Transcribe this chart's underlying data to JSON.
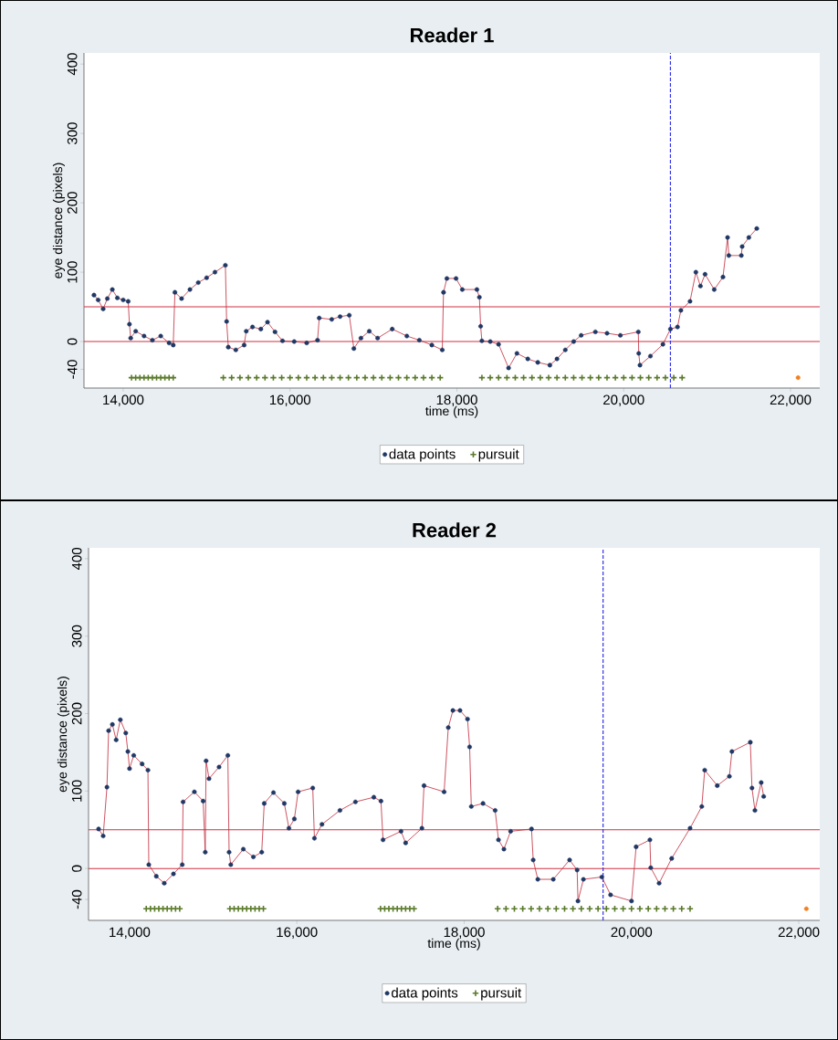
{
  "chart_data": [
    {
      "type": "scatter",
      "title": "Reader 1",
      "xlabel": "time (ms)",
      "ylabel": "eye distance (pixels)",
      "xlim": [
        13530,
        22350
      ],
      "ylim": [
        -67,
        416
      ],
      "xticks": [
        {
          "value": 14000,
          "label": "14,000"
        },
        {
          "value": 16000,
          "label": "16,000"
        },
        {
          "value": 18000,
          "label": "18,000"
        },
        {
          "value": 20000,
          "label": "20,000"
        },
        {
          "value": 22000,
          "label": "22,000"
        }
      ],
      "yticks": [
        -40,
        0,
        100,
        200,
        300,
        400
      ],
      "legend": "bottom",
      "grid": false,
      "ref_lines": [
        {
          "axis": "y",
          "value": 0,
          "color": "#d03040"
        },
        {
          "axis": "y",
          "value": 50,
          "color": "#d03040"
        },
        {
          "axis": "x",
          "value": 20560,
          "color": "#3333ee",
          "line_style": "dashed"
        }
      ],
      "series": [
        {
          "type": "line",
          "color": "#c0283a",
          "x": [
            13650,
            13700,
            13760,
            13810,
            13870,
            13930,
            14000,
            14060,
            14075,
            14090,
            14150,
            14250,
            14350,
            14450,
            14550,
            14600,
            14620,
            14700,
            14800,
            14900,
            15000,
            15100,
            15225,
            15240,
            15260,
            15350,
            15450,
            15475,
            15550,
            15650,
            15730,
            15820,
            15910,
            16050,
            16200,
            16330,
            16350,
            16500,
            16600,
            16710,
            16765,
            16850,
            16950,
            17050,
            17225,
            17400,
            17550,
            17700,
            17825,
            17840,
            17880,
            17990,
            18065,
            18240,
            18270,
            18285,
            18300,
            18400,
            18500,
            18620,
            18720,
            18850,
            18970,
            19115,
            19200,
            19300,
            19400,
            19490,
            19660,
            19800,
            19960,
            20175,
            20180,
            20195,
            20320,
            20470,
            20560,
            20645,
            20685,
            20795,
            20865,
            20920,
            20975,
            21085,
            21190,
            21245,
            21260,
            21410,
            21420,
            21500,
            21595
          ],
          "values": [
            67,
            60,
            47,
            62,
            75,
            63,
            60,
            58,
            25,
            5,
            15,
            8,
            2,
            8,
            -2,
            -5,
            71,
            62,
            75,
            85,
            92,
            100,
            110,
            29,
            -8,
            -12,
            -5,
            15,
            21,
            18,
            28,
            14,
            1,
            0,
            -2,
            2,
            34,
            32,
            36,
            38,
            -10,
            5,
            15,
            5,
            18,
            8,
            2,
            -5,
            -12,
            71,
            91,
            91,
            75,
            75,
            64,
            22,
            1,
            0,
            -4,
            -38,
            -17,
            -25,
            -30,
            -34,
            -25,
            -12,
            0,
            9,
            14,
            12,
            9,
            14,
            -17,
            -34,
            -21,
            -4,
            18,
            21,
            45,
            58,
            100,
            80,
            97,
            75,
            93,
            150,
            124,
            124,
            137,
            150,
            163
          ]
        },
        {
          "name": "data points",
          "marker": "circle",
          "color": "#1f3864",
          "x": [
            13650,
            13700,
            13760,
            13810,
            13870,
            13930,
            14000,
            14060,
            14075,
            14090,
            14150,
            14250,
            14350,
            14450,
            14550,
            14600,
            14620,
            14700,
            14800,
            14900,
            15000,
            15100,
            15225,
            15240,
            15260,
            15350,
            15450,
            15475,
            15550,
            15650,
            15730,
            15820,
            15910,
            16050,
            16200,
            16330,
            16350,
            16500,
            16600,
            16710,
            16765,
            16850,
            16950,
            17050,
            17225,
            17400,
            17550,
            17700,
            17825,
            17840,
            17880,
            17990,
            18065,
            18240,
            18270,
            18285,
            18300,
            18400,
            18500,
            18620,
            18720,
            18850,
            18970,
            19115,
            19200,
            19300,
            19400,
            19490,
            19660,
            19800,
            19960,
            20175,
            20180,
            20195,
            20320,
            20470,
            20560,
            20645,
            20685,
            20795,
            20865,
            20920,
            20975,
            21085,
            21190,
            21245,
            21260,
            21410,
            21420,
            21500,
            21595
          ],
          "values": [
            67,
            60,
            47,
            62,
            75,
            63,
            60,
            58,
            25,
            5,
            15,
            8,
            2,
            8,
            -2,
            -5,
            71,
            62,
            75,
            85,
            92,
            100,
            110,
            29,
            -8,
            -12,
            -5,
            15,
            21,
            18,
            28,
            14,
            1,
            0,
            -2,
            2,
            34,
            32,
            36,
            38,
            -10,
            5,
            15,
            5,
            18,
            8,
            2,
            -5,
            -12,
            71,
            91,
            91,
            75,
            75,
            64,
            22,
            1,
            0,
            -4,
            -38,
            -17,
            -25,
            -30,
            -34,
            -25,
            -12,
            0,
            9,
            14,
            12,
            9,
            14,
            -17,
            -34,
            -21,
            -4,
            18,
            21,
            45,
            58,
            100,
            80,
            97,
            75,
            93,
            150,
            124,
            124,
            137,
            150,
            163
          ]
        },
        {
          "name": "pursuit",
          "marker": "cross",
          "color": "#5a7a2a",
          "x": [
            14100,
            14150,
            14200,
            14250,
            14300,
            14350,
            14400,
            14450,
            14500,
            14550,
            14600,
            15200,
            15300,
            15400,
            15500,
            15600,
            15700,
            15800,
            15900,
            16000,
            16100,
            16200,
            16300,
            16400,
            16500,
            16600,
            16700,
            16800,
            16900,
            17000,
            17100,
            17200,
            17300,
            17400,
            17500,
            17600,
            17700,
            17800,
            18300,
            18400,
            18500,
            18600,
            18700,
            18800,
            18900,
            19000,
            19100,
            19200,
            19300,
            19400,
            19500,
            19600,
            19700,
            19800,
            19900,
            20000,
            20100,
            20200,
            20300,
            20400,
            20500,
            20600,
            20700
          ],
          "values": [
            -52,
            -52,
            -52,
            -52,
            -52,
            -52,
            -52,
            -52,
            -52,
            -52,
            -52,
            -52,
            -52,
            -52,
            -52,
            -52,
            -52,
            -52,
            -52,
            -52,
            -52,
            -52,
            -52,
            -52,
            -52,
            -52,
            -52,
            -52,
            -52,
            -52,
            -52,
            -52,
            -52,
            -52,
            -52,
            -52,
            -52,
            -52,
            -52,
            -52,
            -52,
            -52,
            -52,
            -52,
            -52,
            -52,
            -52,
            -52,
            -52,
            -52,
            -52,
            -52,
            -52,
            -52,
            -52,
            -52,
            -52,
            -52,
            -52,
            -52,
            -52,
            -52,
            -52
          ]
        },
        {
          "marker": "circle",
          "color": "#f08020",
          "x": [
            22090
          ],
          "values": [
            -52
          ]
        }
      ]
    },
    {
      "type": "scatter",
      "title": "Reader 2",
      "xlabel": "time (ms)",
      "ylabel": "eye distance (pixels)",
      "xlim": [
        13510,
        22250
      ],
      "ylim": [
        -67,
        414
      ],
      "xticks": [
        {
          "value": 14000,
          "label": "14,000"
        },
        {
          "value": 16000,
          "label": "16,000"
        },
        {
          "value": 18000,
          "label": "18,000"
        },
        {
          "value": 20000,
          "label": "20,000"
        },
        {
          "value": 22000,
          "label": "22,000"
        }
      ],
      "yticks": [
        -40,
        0,
        100,
        200,
        300,
        400
      ],
      "legend": "bottom",
      "grid": false,
      "ref_lines": [
        {
          "axis": "y",
          "value": 0,
          "color": "#d03040"
        },
        {
          "axis": "y",
          "value": 50,
          "color": "#d03040"
        },
        {
          "axis": "x",
          "value": 19660,
          "color": "#3333ee",
          "line_style": "dashed"
        }
      ],
      "series": [
        {
          "type": "line",
          "color": "#c0283a",
          "x": [
            13630,
            13685,
            13730,
            13750,
            13795,
            13840,
            13890,
            13955,
            13980,
            14000,
            14050,
            14150,
            14220,
            14230,
            14320,
            14415,
            14525,
            14630,
            14640,
            14775,
            14880,
            14905,
            14915,
            14950,
            15070,
            15175,
            15190,
            15210,
            15360,
            15480,
            15580,
            15610,
            15720,
            15850,
            15905,
            15970,
            16015,
            16190,
            16210,
            16300,
            16515,
            16700,
            16920,
            17005,
            17030,
            17245,
            17300,
            17495,
            17520,
            17760,
            17810,
            17865,
            17950,
            18040,
            18065,
            18085,
            18225,
            18370,
            18410,
            18475,
            18555,
            18805,
            18825,
            18880,
            19065,
            19260,
            19350,
            19360,
            19425,
            19645,
            19750,
            20000,
            20055,
            20220,
            20230,
            20330,
            20480,
            20700,
            20840,
            20875,
            21025,
            21170,
            21200,
            21420,
            21440,
            21475,
            21550,
            21580
          ],
          "values": [
            51,
            42,
            105,
            178,
            186,
            166,
            192,
            175,
            151,
            129,
            146,
            135,
            127,
            5,
            -10,
            -19,
            -7,
            5,
            86,
            99,
            87,
            21,
            139,
            116,
            131,
            146,
            21,
            5,
            25,
            15,
            21,
            84,
            98,
            84,
            52,
            64,
            99,
            104,
            39,
            57,
            75,
            86,
            92,
            87,
            37,
            48,
            33,
            52,
            107,
            99,
            182,
            204,
            204,
            193,
            157,
            80,
            84,
            75,
            37,
            25,
            48,
            51,
            11,
            -14,
            -14,
            11,
            -2,
            -42,
            -14,
            -11,
            -34,
            -42,
            28,
            37,
            1,
            -19,
            13,
            52,
            80,
            127,
            107,
            119,
            151,
            163,
            104,
            75,
            111,
            93
          ]
        },
        {
          "name": "data points",
          "marker": "circle",
          "color": "#1f3864",
          "x": [
            13630,
            13685,
            13730,
            13750,
            13795,
            13840,
            13890,
            13955,
            13980,
            14000,
            14050,
            14150,
            14220,
            14230,
            14320,
            14415,
            14525,
            14630,
            14640,
            14775,
            14880,
            14905,
            14915,
            14950,
            15070,
            15175,
            15190,
            15210,
            15360,
            15480,
            15580,
            15610,
            15720,
            15850,
            15905,
            15970,
            16015,
            16190,
            16210,
            16300,
            16515,
            16700,
            16920,
            17005,
            17030,
            17245,
            17300,
            17495,
            17520,
            17760,
            17810,
            17865,
            17950,
            18040,
            18065,
            18085,
            18225,
            18370,
            18410,
            18475,
            18555,
            18805,
            18825,
            18880,
            19065,
            19260,
            19350,
            19360,
            19425,
            19645,
            19750,
            20000,
            20055,
            20220,
            20230,
            20330,
            20480,
            20700,
            20840,
            20875,
            21025,
            21170,
            21200,
            21420,
            21440,
            21475,
            21550,
            21580
          ],
          "values": [
            51,
            42,
            105,
            178,
            186,
            166,
            192,
            175,
            151,
            129,
            146,
            135,
            127,
            5,
            -10,
            -19,
            -7,
            5,
            86,
            99,
            87,
            21,
            139,
            116,
            131,
            146,
            21,
            5,
            25,
            15,
            21,
            84,
            98,
            84,
            52,
            64,
            99,
            104,
            39,
            57,
            75,
            86,
            92,
            87,
            37,
            48,
            33,
            52,
            107,
            99,
            182,
            204,
            204,
            193,
            157,
            80,
            84,
            75,
            37,
            25,
            48,
            51,
            11,
            -14,
            -14,
            11,
            -2,
            -42,
            -14,
            -11,
            -34,
            -42,
            28,
            37,
            1,
            -19,
            13,
            52,
            80,
            127,
            107,
            119,
            151,
            163,
            104,
            75,
            111,
            93
          ]
        },
        {
          "name": "pursuit",
          "marker": "cross",
          "color": "#5a7a2a",
          "x": [
            14200,
            14250,
            14300,
            14350,
            14400,
            14450,
            14500,
            14550,
            14600,
            15200,
            15250,
            15300,
            15350,
            15400,
            15450,
            15500,
            15550,
            15600,
            17000,
            17050,
            17100,
            17150,
            17200,
            17250,
            17300,
            17350,
            17400,
            18400,
            18500,
            18600,
            18700,
            18800,
            18900,
            19000,
            19100,
            19200,
            19300,
            19400,
            19500,
            19600,
            19700,
            19800,
            19900,
            20000,
            20100,
            20200,
            20300,
            20400,
            20500,
            20600,
            20700
          ],
          "values": [
            -52,
            -52,
            -52,
            -52,
            -52,
            -52,
            -52,
            -52,
            -52,
            -52,
            -52,
            -52,
            -52,
            -52,
            -52,
            -52,
            -52,
            -52,
            -52,
            -52,
            -52,
            -52,
            -52,
            -52,
            -52,
            -52,
            -52,
            -52,
            -52,
            -52,
            -52,
            -52,
            -52,
            -52,
            -52,
            -52,
            -52,
            -52,
            -52,
            -52,
            -52,
            -52,
            -52,
            -52,
            -52,
            -52,
            -52,
            -52,
            -52,
            -52,
            -52
          ]
        },
        {
          "marker": "circle",
          "color": "#f08020",
          "x": [
            22090
          ],
          "values": [
            -52
          ]
        }
      ]
    }
  ]
}
